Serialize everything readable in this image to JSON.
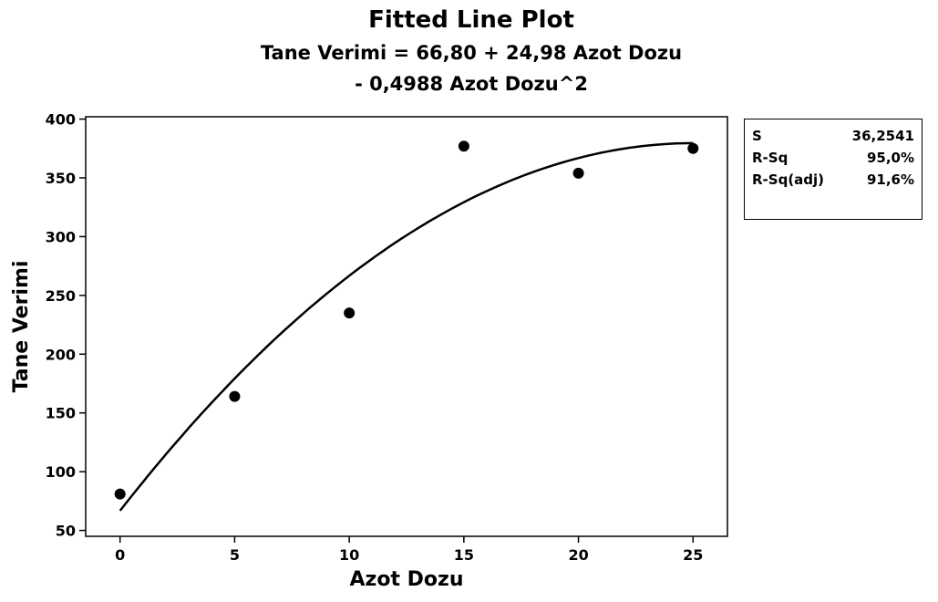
{
  "chart_data": {
    "type": "scatter",
    "title": "Fitted Line Plot",
    "subtitle_lines": [
      "Tane Verimi = 66,80 + 24,98 Azot Dozu",
      "- 0,4988 Azot Dozu^2"
    ],
    "xlabel": "Azot Dozu",
    "ylabel": "Tane Verimi",
    "xlim": [
      -1.5,
      26.5
    ],
    "ylim": [
      45,
      402
    ],
    "x_ticks": [
      0,
      5,
      10,
      15,
      20,
      25
    ],
    "y_ticks": [
      50,
      100,
      150,
      200,
      250,
      300,
      350,
      400
    ],
    "series": [
      {
        "kind": "points",
        "x": [
          0,
          5,
          10,
          15,
          20,
          25
        ],
        "y": [
          81,
          164,
          235,
          377,
          354,
          375
        ],
        "color": "#000000"
      }
    ],
    "fit": {
      "model": "quadratic",
      "coefficients": [
        66.8,
        24.98,
        -0.4988
      ],
      "color": "#000000"
    },
    "grid": false,
    "stats": [
      {
        "label": "S",
        "value": "36,2541"
      },
      {
        "label": "R-Sq",
        "value": "95,0%"
      },
      {
        "label": "R-Sq(adj)",
        "value": "91,6%"
      }
    ]
  }
}
